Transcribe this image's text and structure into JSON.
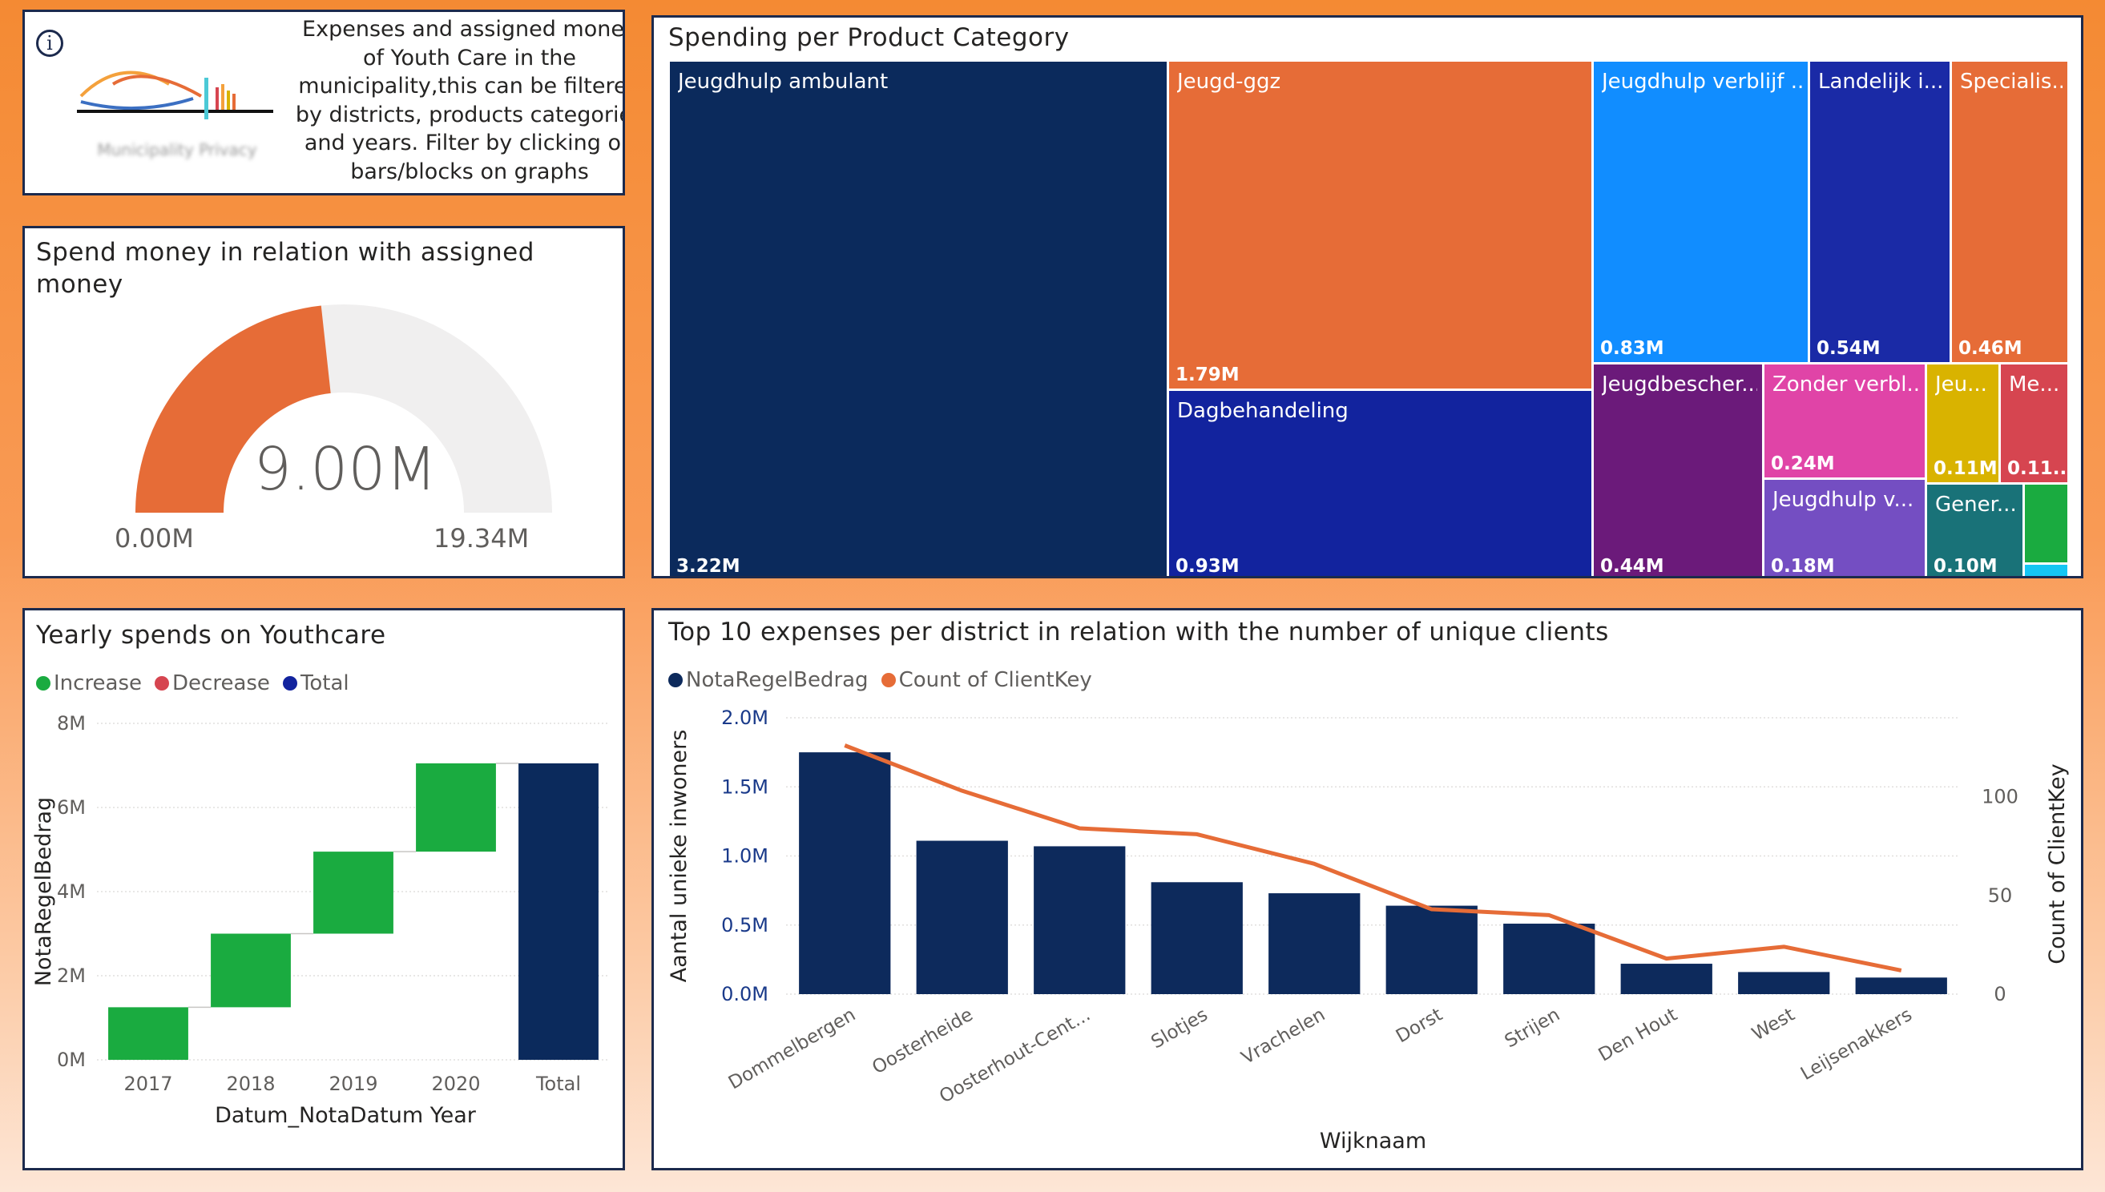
{
  "info_card": {
    "icon": "info-icon",
    "description": "Expenses and assigned money of Youth Care in the municipality,this can be filtered by districts, products categories and years. Filter by clicking on bars/blocks on graphs",
    "logo_caption": "Municipality Privacy"
  },
  "gauge_card": {
    "title": "Spend money in relation with assigned money",
    "value_label": "9.00M",
    "min_label": "0.00M",
    "max_label": "19.34M",
    "value": 9.0,
    "min": 0,
    "max": 19.34,
    "fill_color": "#e66c37",
    "track_color": "#f0efef"
  },
  "treemap_card": {
    "title": "Spending per Product Category"
  },
  "waterfall_card": {
    "title": "Yearly spends on Youthcare",
    "legend": [
      {
        "label": "Increase",
        "color": "#1aab40"
      },
      {
        "label": "Decrease",
        "color": "#d64550"
      },
      {
        "label": "Total",
        "color": "#12239e"
      }
    ]
  },
  "combo_card": {
    "title": "Top 10 expenses per district in relation with the number of unique clients",
    "legend": [
      {
        "label": "NotaRegelBedrag",
        "color": "#0d2a5c"
      },
      {
        "label": "Count of ClientKey",
        "color": "#e66c37"
      }
    ]
  },
  "chart_data": [
    {
      "type": "treemap",
      "title": "Spending per Product Category",
      "items": [
        {
          "label": "Jeugdhulp ambulant",
          "value_label": "3.22M",
          "value": 3.22,
          "color": "#0b2a5c"
        },
        {
          "label": "Jeugd-ggz",
          "value_label": "1.79M",
          "value": 1.79,
          "color": "#e66c37"
        },
        {
          "label": "Dagbehandeling",
          "value_label": "0.93M",
          "value": 0.93,
          "color": "#12239e"
        },
        {
          "label": "Jeugdhulp verblijf ...",
          "value_label": "0.83M",
          "value": 0.83,
          "color": "#118dff"
        },
        {
          "label": "Landelijk i...",
          "value_label": "0.54M",
          "value": 0.54,
          "color": "#1a2aa6"
        },
        {
          "label": "Specialis...",
          "value_label": "0.46M",
          "value": 0.46,
          "color": "#e66c37"
        },
        {
          "label": "Jeugdbescher...",
          "value_label": "0.44M",
          "value": 0.44,
          "color": "#6b1a7a"
        },
        {
          "label": "Zonder verbl...",
          "value_label": "0.24M",
          "value": 0.24,
          "color": "#e044a7"
        },
        {
          "label": "Jeugdhulp v...",
          "value_label": "0.18M",
          "value": 0.18,
          "color": "#744ec2"
        },
        {
          "label": "Jeu...",
          "value_label": "0.11M",
          "value": 0.11,
          "color": "#d9b300"
        },
        {
          "label": "Me...",
          "value_label": "0.11...",
          "value": 0.11,
          "color": "#d64550"
        },
        {
          "label": "Gener...",
          "value_label": "0.10M",
          "value": 0.1,
          "color": "#197278"
        },
        {
          "label": "",
          "value_label": "",
          "value": 0.05,
          "color": "#1aab40"
        },
        {
          "label": "",
          "value_label": "",
          "value": 0.02,
          "color": "#15c6f4"
        }
      ]
    },
    {
      "type": "waterfall",
      "title": "Yearly spends on Youthcare",
      "categories": [
        "2017",
        "2018",
        "2019",
        "2020",
        "Total"
      ],
      "steps": [
        {
          "label": "2017",
          "start": 0,
          "end": 1.25,
          "kind": "increase"
        },
        {
          "label": "2018",
          "start": 1.25,
          "end": 3.0,
          "kind": "increase"
        },
        {
          "label": "2019",
          "start": 3.0,
          "end": 4.95,
          "kind": "increase"
        },
        {
          "label": "2020",
          "start": 4.95,
          "end": 7.05,
          "kind": "increase"
        },
        {
          "label": "Total",
          "start": 0,
          "end": 7.05,
          "kind": "total"
        }
      ],
      "colors": {
        "increase": "#1aab40",
        "decrease": "#d64550",
        "total": "#0b2a5c"
      },
      "ylim": [
        0,
        8
      ],
      "yticks": [
        0,
        2,
        4,
        6,
        8
      ],
      "ytick_labels": [
        "0M",
        "2M",
        "4M",
        "6M",
        "8M"
      ],
      "xlabel": "Datum_NotaDatum Year",
      "ylabel": "NotaRegelBedrag"
    },
    {
      "type": "bar+line",
      "title": "Top 10 expenses per district in relation with the number of unique clients",
      "categories": [
        "Dommelbergen",
        "Oosterheide",
        "Oosterhout-Cent...",
        "Slotjes",
        "Vrachelen",
        "Dorst",
        "Strijen",
        "Den Hout",
        "West",
        "Leijsenakkers"
      ],
      "series": [
        {
          "name": "NotaRegelBedrag",
          "axis": "left",
          "type": "bar",
          "color": "#0d2a5c",
          "values": [
            1.75,
            1.11,
            1.07,
            0.81,
            0.73,
            0.64,
            0.51,
            0.22,
            0.16,
            0.12
          ]
        },
        {
          "name": "Count of ClientKey",
          "axis": "right",
          "type": "line",
          "color": "#e66c37",
          "values": [
            126,
            103,
            84,
            81,
            66,
            43,
            40,
            18,
            24,
            12
          ]
        }
      ],
      "left_ylim": [
        0,
        2.0
      ],
      "left_yticks": [
        0,
        0.5,
        1.0,
        1.5,
        2.0
      ],
      "left_ytick_labels": [
        "0.0M",
        "0.5M",
        "1.0M",
        "1.5M",
        "2.0M"
      ],
      "right_ylim": [
        0,
        140
      ],
      "right_yticks": [
        0,
        50,
        100
      ],
      "right_ytick_labels": [
        "0",
        "50",
        "100"
      ],
      "xlabel": "Wijknaam",
      "ylabel_left": "Aantal unieke inwoners",
      "ylabel_right": "Count of ClientKey"
    }
  ]
}
